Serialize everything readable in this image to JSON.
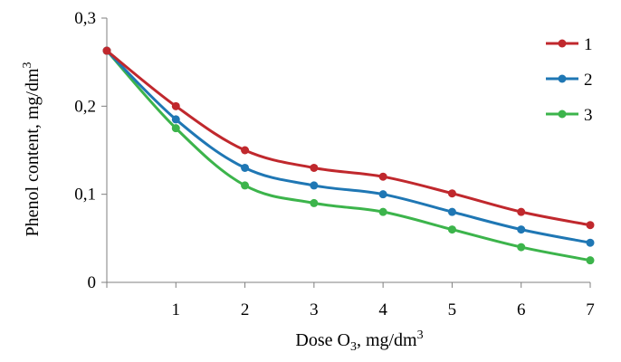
{
  "chart_data": {
    "type": "line",
    "title": "",
    "xlabel": {
      "prefix": "Dose O",
      "sub": "3",
      "suffix": ", mg/dm",
      "sup": "3"
    },
    "ylabel": {
      "prefix": "Phenol content, mg/dm",
      "sup": "3"
    },
    "x": [
      0,
      1,
      2,
      3,
      4,
      5,
      6,
      7
    ],
    "xlim": [
      0,
      7
    ],
    "ylim": [
      0,
      0.3
    ],
    "x_ticks": [
      {
        "value": 1,
        "label": "1"
      },
      {
        "value": 2,
        "label": "2"
      },
      {
        "value": 3,
        "label": "3"
      },
      {
        "value": 4,
        "label": "4"
      },
      {
        "value": 5,
        "label": "5"
      },
      {
        "value": 6,
        "label": "6"
      },
      {
        "value": 7,
        "label": "7"
      }
    ],
    "y_ticks": [
      {
        "value": 0,
        "label": "0"
      },
      {
        "value": 0.1,
        "label": "0,1"
      },
      {
        "value": 0.2,
        "label": "0,2"
      },
      {
        "value": 0.3,
        "label": "0,3"
      }
    ],
    "grid": false,
    "legend_position": "top-right",
    "series": [
      {
        "name": "1",
        "color": "#c0282d",
        "values": [
          0.263,
          0.2,
          0.15,
          0.13,
          0.12,
          0.101,
          0.08,
          0.065
        ]
      },
      {
        "name": "2",
        "color": "#1f77b4",
        "values": [
          0.263,
          0.185,
          0.13,
          0.11,
          0.1,
          0.08,
          0.06,
          0.045
        ]
      },
      {
        "name": "3",
        "color": "#3cb44b",
        "values": [
          0.263,
          0.175,
          0.11,
          0.09,
          0.08,
          0.06,
          0.04,
          0.025
        ]
      }
    ]
  }
}
